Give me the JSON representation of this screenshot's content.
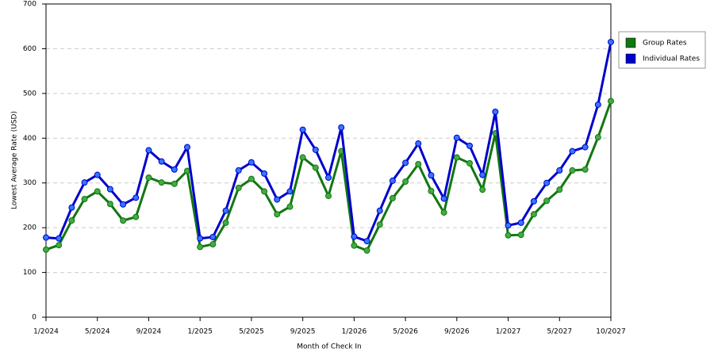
{
  "chart_data": {
    "type": "line",
    "x_label": "Month of Check In",
    "y_label": "Lowest Average Rate (USD)",
    "categories": [
      "1/2024",
      null,
      null,
      null,
      "5/2024",
      null,
      null,
      null,
      "9/2024",
      null,
      null,
      null,
      "1/2025",
      null,
      null,
      null,
      "5/2025",
      null,
      null,
      null,
      "9/2025",
      null,
      null,
      null,
      "1/2026",
      null,
      null,
      null,
      "5/2026",
      null,
      null,
      null,
      "9/2026",
      null,
      null,
      null,
      "1/2027",
      null,
      null,
      null,
      "5/2027",
      null,
      null,
      null,
      "10/2027"
    ],
    "series": [
      {
        "name": "Group Rates",
        "color": "#117711",
        "marker_color": "#44aa44",
        "values": [
          151,
          161,
          216,
          264,
          281,
          253,
          216,
          224,
          312,
          301,
          298,
          327,
          157,
          163,
          211,
          289,
          309,
          281,
          230,
          247,
          357,
          334,
          271,
          371,
          160,
          149,
          207,
          266,
          303,
          342,
          282,
          234,
          357,
          344,
          285,
          411,
          183,
          184,
          230,
          260,
          285,
          328,
          330,
          402,
          483
        ]
      },
      {
        "name": "Individual Rates",
        "color": "#0000cc",
        "marker_color": "#3377ff",
        "values": [
          178,
          176,
          245,
          301,
          318,
          286,
          252,
          267,
          373,
          348,
          330,
          380,
          176,
          179,
          238,
          328,
          346,
          321,
          263,
          281,
          419,
          374,
          312,
          424,
          180,
          170,
          238,
          305,
          345,
          388,
          317,
          265,
          401,
          383,
          318,
          459,
          205,
          211,
          259,
          300,
          328,
          371,
          380,
          475,
          615
        ]
      }
    ],
    "ylim": [
      0,
      700
    ],
    "yticks": [
      0,
      100,
      200,
      300,
      400,
      500,
      600,
      700
    ],
    "grid": true,
    "legend": "right"
  }
}
